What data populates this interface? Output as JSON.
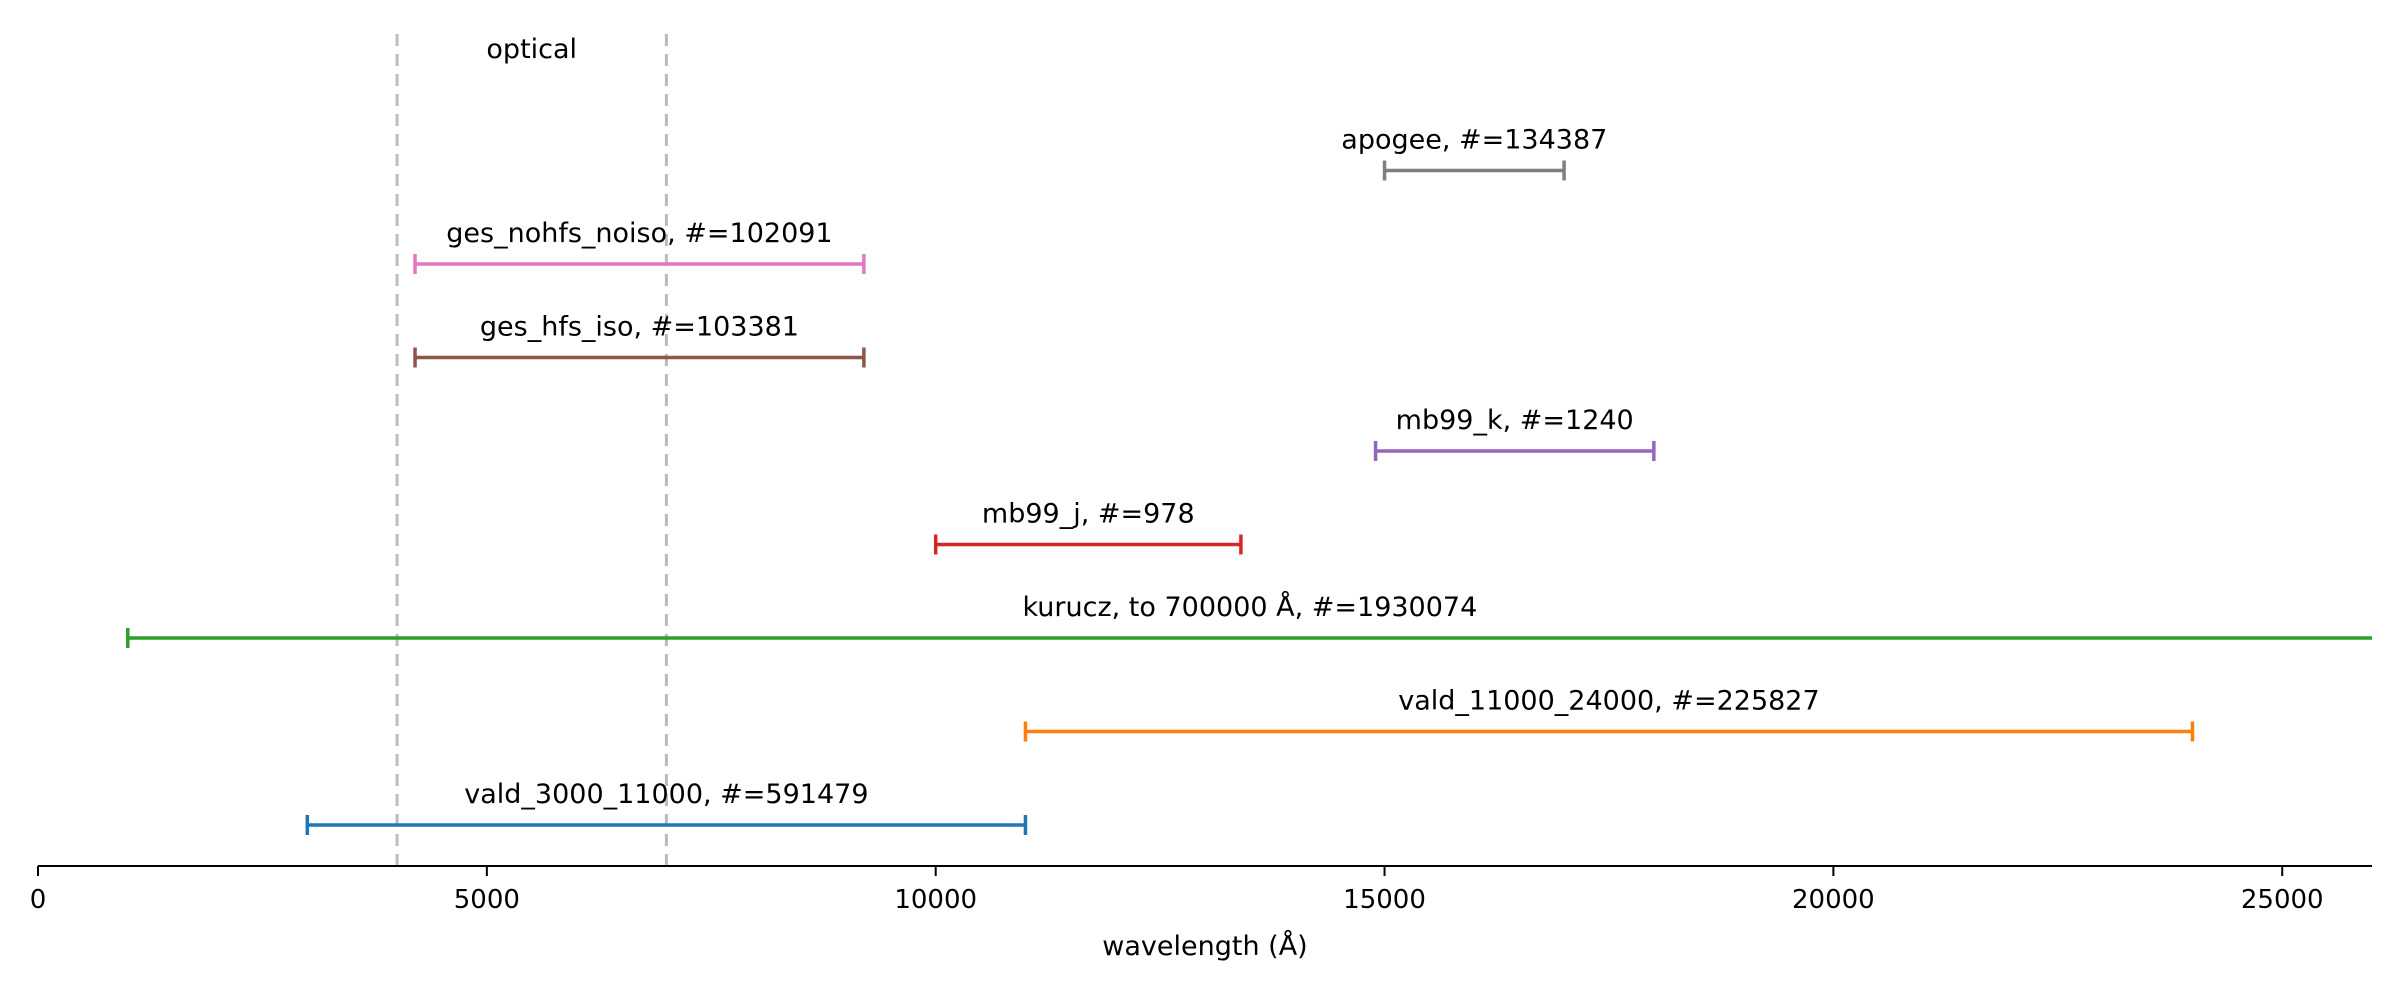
{
  "chart_data": {
    "type": "range",
    "title": "",
    "xlabel": "wavelength (Å)",
    "ylabel": "",
    "xlim": [
      0,
      26000
    ],
    "xticks": [
      0,
      5000,
      10000,
      15000,
      20000,
      25000
    ],
    "grid": false,
    "legend": "none",
    "region": {
      "label": "optical",
      "x": [
        4000,
        7000
      ],
      "color": "#bbbbbb",
      "linestyle": "dashed"
    },
    "ranges": [
      {
        "label": "vald_3000_11000, #=591479",
        "x": [
          3000,
          11000
        ],
        "color": "#1f77b4"
      },
      {
        "label": "vald_11000_24000, #=225827",
        "x": [
          11000,
          24000
        ],
        "color": "#ff7f0e"
      },
      {
        "label": "kurucz, to 700000 Å, #=1930074",
        "x": [
          1000,
          26000
        ],
        "color": "#2ca02c",
        "extends_beyond_axis": true
      },
      {
        "label": "mb99_j, #=978",
        "x": [
          10000,
          13400
        ],
        "color": "#d62728"
      },
      {
        "label": "mb99_k, #=1240",
        "x": [
          14900,
          18000
        ],
        "color": "#9467bd"
      },
      {
        "label": "ges_hfs_iso, #=103381",
        "x": [
          4200,
          9200
        ],
        "color": "#8c564b"
      },
      {
        "label": "ges_nohfs_noiso, #=102091",
        "x": [
          4200,
          9200
        ],
        "color": "#e377c2"
      },
      {
        "label": "apogee, #=134387",
        "x": [
          15000,
          17000
        ],
        "color": "#7f7f7f"
      }
    ]
  }
}
